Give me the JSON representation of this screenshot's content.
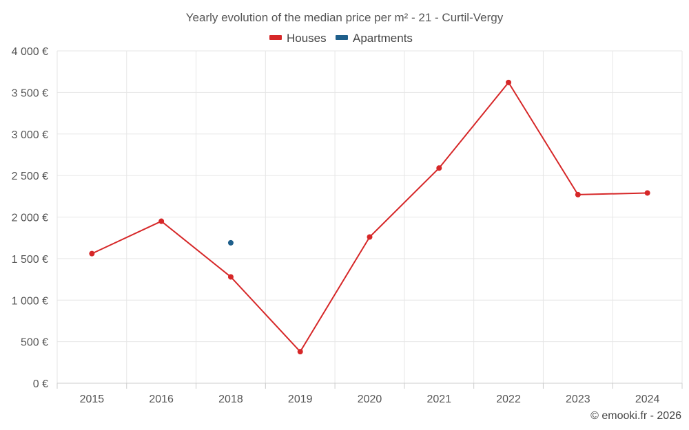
{
  "chart_data": {
    "type": "line",
    "title": "Yearly evolution of the median price per m² - 21 - Curtil-Vergy",
    "categories": [
      "2015",
      "2016",
      "2018",
      "2019",
      "2020",
      "2021",
      "2022",
      "2023",
      "2024"
    ],
    "ylim": [
      0,
      4000
    ],
    "yticks": [
      0,
      500,
      1000,
      1500,
      2000,
      2500,
      3000,
      3500,
      4000
    ],
    "ytick_labels": [
      "0 €",
      "500 €",
      "1 000 €",
      "1 500 €",
      "2 000 €",
      "2 500 €",
      "3 000 €",
      "3 500 €",
      "4 000 €"
    ],
    "xlabel": "",
    "ylabel": "",
    "grid": true,
    "legend_position": "top-center",
    "series": [
      {
        "name": "Houses",
        "color": "#d62728",
        "values": [
          1560,
          1950,
          1280,
          380,
          1760,
          2590,
          3620,
          2270,
          2290
        ]
      },
      {
        "name": "Apartments",
        "color": "#1f5f8b",
        "values": [
          null,
          null,
          1690,
          null,
          null,
          null,
          null,
          null,
          null
        ]
      }
    ],
    "credit": "© emooki.fr - 2026"
  }
}
